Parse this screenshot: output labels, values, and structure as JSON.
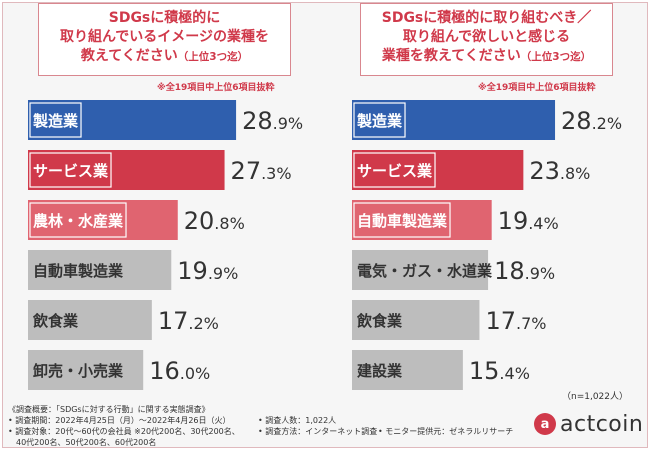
{
  "left_title": {
    "line1": "SDGsに積極的に",
    "line2": "取り組んでいるイメージの業種を",
    "line3": "教えてください",
    "suffix": "（上位3つ迄）"
  },
  "right_title": {
    "line1": "SDGsに積極的に取り組むべき／",
    "line2": "取り組んで欲しいと感じる",
    "line3": "業種を教えてください",
    "suffix": "（上位3つ迄）"
  },
  "note": "※全19項目中上位6項目抜粋",
  "chart_data": [
    {
      "type": "bar",
      "orientation": "horizontal",
      "title": "SDGsに積極的に取り組んでいるイメージの業種を教えてください（上位3つ迄）",
      "unit": "%",
      "categories": [
        "製造業",
        "サービス業",
        "農林・水産業",
        "自動車製造業",
        "飲食業",
        "卸売・小売業"
      ],
      "values": [
        28.9,
        27.3,
        20.8,
        19.9,
        17.2,
        16.0
      ],
      "colors": [
        "#2f5fae",
        "#d0394a",
        "#e06470",
        "#bdbdbd",
        "#bdbdbd",
        "#bdbdbd"
      ]
    },
    {
      "type": "bar",
      "orientation": "horizontal",
      "title": "SDGsに積極的に取り組むべき／取り組んで欲しいと感じる業種を教えてください（上位3つ迄）",
      "unit": "%",
      "categories": [
        "製造業",
        "サービス業",
        "自動車製造業",
        "電気・ガス・水道業",
        "飲食業",
        "建設業"
      ],
      "values": [
        28.2,
        23.8,
        19.4,
        18.9,
        17.7,
        15.4
      ],
      "colors": [
        "#2f5fae",
        "#d0394a",
        "#e06470",
        "#bdbdbd",
        "#bdbdbd",
        "#bdbdbd"
      ]
    }
  ],
  "sample_size": "（n=1,022人）",
  "footer": {
    "line1": "《調査概要：「SDGsに対する行動」に関する実態調査》",
    "line2": "• 調査期間：2022年4月25日（月）～2022年4月26日（火）",
    "line3": "• 調査対象：20代～60代の会社員 ※20代200名、30代200名、",
    "line4": "　40代200名、50代200名、60代200名",
    "people": "• 調査人数：1,022人",
    "method": "• 調査方法：インターネット調査",
    "monitor": "• モニター提供元：ゼネラルリサーチ"
  },
  "logo": {
    "mark": "a",
    "text": "actcoin"
  }
}
